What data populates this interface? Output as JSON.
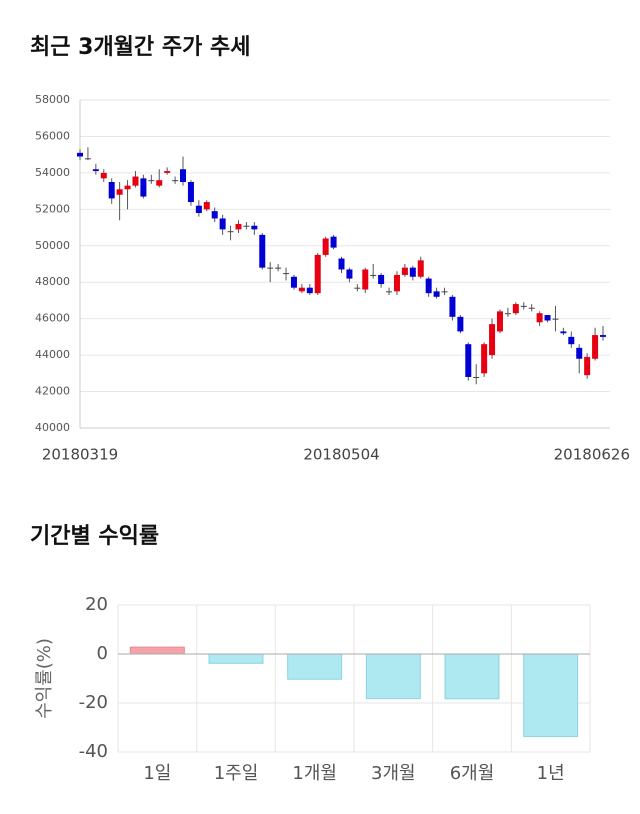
{
  "chart_data": [
    {
      "type": "candlestick",
      "title": "최근 3개월간 주가 추세",
      "categories": [
        "20180319",
        null,
        null,
        null,
        null,
        null,
        null,
        null,
        null,
        null,
        null,
        null,
        null,
        null,
        null,
        null,
        null,
        null,
        null,
        null,
        null,
        null,
        null,
        null,
        null,
        null,
        null,
        null,
        null,
        null,
        null,
        null,
        null,
        "20180504",
        null,
        null,
        null,
        null,
        null,
        null,
        null,
        null,
        null,
        null,
        null,
        null,
        null,
        null,
        null,
        null,
        null,
        null,
        null,
        null,
        null,
        null,
        null,
        null,
        null,
        null,
        null,
        null,
        null,
        null,
        null,
        null,
        "20180626"
      ],
      "open": [
        55100,
        54800,
        54200,
        53700,
        53500,
        52800,
        53100,
        53300,
        53700,
        53600,
        53300,
        54000,
        53600,
        54200,
        53500,
        52200,
        52000,
        51900,
        51500,
        50800,
        50900,
        51100,
        51100,
        50600,
        48800,
        48800,
        48500,
        48300,
        47500,
        47700,
        47400,
        49500,
        50500,
        49300,
        48700,
        47700,
        47600,
        48400,
        48400,
        47500,
        47500,
        48400,
        48800,
        48300,
        48200,
        47500,
        47500,
        47200,
        46100,
        44600,
        42800,
        43000,
        44000,
        45300,
        46300,
        46300,
        46700,
        46600,
        45800,
        46200,
        46000,
        45300,
        45000,
        44400,
        42900,
        43800,
        45100
      ],
      "high": [
        55300,
        55400,
        54500,
        54200,
        53700,
        53500,
        53600,
        54100,
        53900,
        53900,
        54200,
        54300,
        53800,
        54900,
        53600,
        52500,
        52500,
        52100,
        51700,
        51100,
        51400,
        51300,
        51300,
        50700,
        49100,
        49000,
        48800,
        48400,
        47900,
        47900,
        49600,
        50500,
        50600,
        49400,
        48800,
        47900,
        48800,
        49000,
        48500,
        47700,
        48600,
        49000,
        48900,
        49400,
        48300,
        47700,
        47700,
        47300,
        46200,
        44700,
        43500,
        44700,
        46000,
        46500,
        46600,
        46900,
        46900,
        46800,
        46400,
        46200,
        46700,
        45500,
        45300,
        44600,
        44100,
        45500,
        45600
      ],
      "low": [
        54700,
        54700,
        53900,
        53500,
        52300,
        51400,
        52000,
        53200,
        52600,
        53400,
        53200,
        53900,
        53400,
        53300,
        52200,
        51600,
        51900,
        51300,
        50600,
        50300,
        50700,
        50900,
        50600,
        48700,
        48000,
        48600,
        48100,
        47600,
        47400,
        47300,
        47300,
        49400,
        49800,
        48500,
        48000,
        47500,
        47400,
        48200,
        47700,
        47300,
        47300,
        48300,
        48100,
        48200,
        47200,
        47100,
        47300,
        45900,
        45200,
        42600,
        42400,
        42800,
        43800,
        45200,
        46100,
        46200,
        46500,
        46400,
        45600,
        45800,
        45300,
        45100,
        44400,
        43000,
        42700,
        43700,
        44800
      ],
      "close": [
        54900,
        54800,
        54100,
        54000,
        52600,
        53100,
        53300,
        53800,
        52700,
        53600,
        53600,
        54100,
        53600,
        53500,
        52400,
        51800,
        52400,
        51500,
        50900,
        50800,
        51200,
        51100,
        50900,
        48800,
        48800,
        48800,
        48500,
        47700,
        47700,
        47400,
        49500,
        50400,
        49900,
        48700,
        48200,
        47700,
        48700,
        48400,
        47900,
        47500,
        48400,
        48800,
        48300,
        49200,
        47400,
        47200,
        47500,
        46100,
        45300,
        42800,
        42800,
        44600,
        45700,
        46400,
        46300,
        46800,
        46700,
        46600,
        46300,
        45900,
        46000,
        45200,
        44600,
        43800,
        43900,
        45100,
        45000
      ],
      "up_color": "#e60012",
      "down_color": "#0000d6",
      "flat_color": "#444444",
      "ylim": [
        40000,
        58000
      ],
      "yticks": [
        40000,
        42000,
        44000,
        46000,
        48000,
        50000,
        52000,
        54000,
        56000,
        58000
      ],
      "grid": true
    },
    {
      "type": "bar",
      "title": "기간별 수익률",
      "ylabel": "수익률(%)",
      "categories": [
        "1일",
        "1주일",
        "1개월",
        "3개월",
        "6개월",
        "1년"
      ],
      "values": [
        2.8,
        -3.8,
        -10.3,
        -18.2,
        -18.3,
        -33.7
      ],
      "positive_color": "#f5a3a8",
      "negative_color": "#aee9f2",
      "ylim": [
        -40,
        20
      ],
      "yticks": [
        -40,
        -20,
        0,
        20
      ],
      "grid": true
    }
  ]
}
